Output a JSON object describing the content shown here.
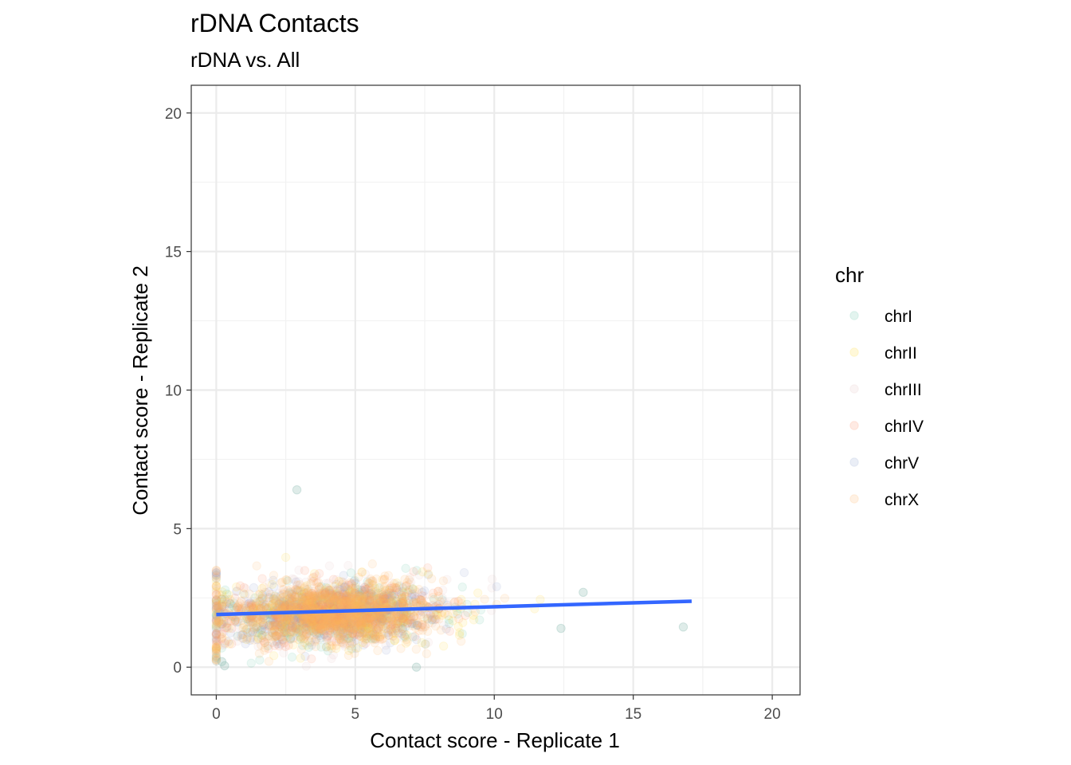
{
  "chart_data": {
    "type": "scatter",
    "title": "rDNA Contacts",
    "subtitle": "rDNA vs. All",
    "xlabel": "Contact score - Replicate 1",
    "ylabel": "Contact score - Replicate 2",
    "xlim": [
      -0.9,
      21
    ],
    "ylim": [
      -1,
      21
    ],
    "xticks": [
      0,
      5,
      10,
      15,
      20
    ],
    "yticks": [
      0,
      5,
      10,
      15,
      20
    ],
    "grid": true,
    "legend": {
      "title": "chr",
      "position": "right",
      "entries": [
        {
          "label": "chrI",
          "color": "#66c2a5"
        },
        {
          "label": "chrII",
          "color": "#ffd92f"
        },
        {
          "label": "chrIII",
          "color": "#e5c4c4"
        },
        {
          "label": "chrIV",
          "color": "#fc8d62"
        },
        {
          "label": "chrV",
          "color": "#8da0cb"
        },
        {
          "label": "chrX",
          "color": "#fdb462"
        }
      ]
    },
    "point_opacity": 0.12,
    "cloud": {
      "center_x": 4.2,
      "center_y": 1.95,
      "spread_x": 1.9,
      "spread_y": 0.55,
      "n_points_per_series": 420
    },
    "notable_points": [
      {
        "x": 2.9,
        "y": 6.4
      },
      {
        "x": 16.8,
        "y": 1.45
      },
      {
        "x": 13.2,
        "y": 2.7
      },
      {
        "x": 12.4,
        "y": 1.4
      },
      {
        "x": 7.2,
        "y": 0.0
      },
      {
        "x": 0.2,
        "y": 0.2
      },
      {
        "x": 0.3,
        "y": 0.05
      }
    ],
    "trend_line": {
      "color": "#3366ff",
      "x": [
        0,
        17.1
      ],
      "y": [
        1.9,
        2.38
      ]
    }
  }
}
